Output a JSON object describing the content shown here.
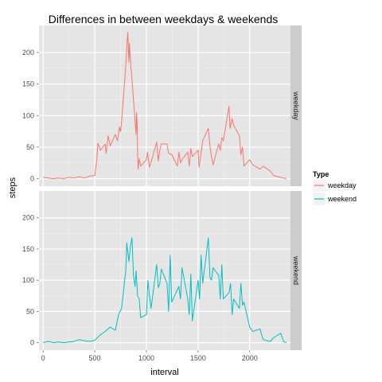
{
  "chart_data": {
    "type": "line",
    "title": "Differences in between weekdays & weekends",
    "xlabel": "interval",
    "ylabel": "steps",
    "xlim": [
      -40,
      2395
    ],
    "ylim": [
      -12,
      243
    ],
    "x_ticks": [
      0,
      500,
      1000,
      1500,
      2000
    ],
    "x_tick_labels": [
      "0",
      "500",
      "1000",
      "1500",
      "2000"
    ],
    "y_ticks": [
      0,
      50,
      100,
      150,
      200
    ],
    "y_tick_labels": [
      "0",
      "50",
      "100",
      "150",
      "200"
    ],
    "grid": true,
    "facet_by": "Type",
    "legend": {
      "title": "Type",
      "position": "right",
      "entries": [
        {
          "label": "weekday",
          "color": "#F8766D"
        },
        {
          "label": "weekend",
          "color": "#00BFC4"
        }
      ]
    },
    "panels": [
      {
        "strip_label": "weekday",
        "series": [
          {
            "name": "weekday",
            "color": "#F8766D",
            "x": [
              0,
              50,
              100,
              150,
              200,
              250,
              300,
              350,
              400,
              450,
              500,
              520,
              530,
              545,
              555,
              600,
              610,
              630,
              650,
              700,
              720,
              740,
              750,
              760,
              800,
              810,
              820,
              830,
              835,
              840,
              845,
              850,
              855,
              900,
              905,
              910,
              915,
              920,
              930,
              945,
              1000,
              1010,
              1030,
              1045,
              1100,
              1115,
              1130,
              1145,
              1200,
              1215,
              1245,
              1300,
              1315,
              1330,
              1345,
              1400,
              1415,
              1430,
              1445,
              1500,
              1510,
              1530,
              1545,
              1600,
              1615,
              1630,
              1645,
              1700,
              1715,
              1730,
              1745,
              1800,
              1810,
              1830,
              1845,
              1900,
              1915,
              1930,
              1945,
              2000,
              2030,
              2100,
              2130,
              2200,
              2230,
              2300,
              2355
            ],
            "y": [
              2,
              1,
              0,
              1,
              0,
              2,
              1,
              3,
              1,
              4,
              5,
              30,
              56,
              50,
              45,
              55,
              40,
              68,
              52,
              70,
              60,
              82,
              75,
              90,
              178,
              210,
              232,
              185,
              215,
              200,
              190,
              175,
              170,
              70,
              105,
              90,
              40,
              15,
              32,
              20,
              30,
              42,
              18,
              26,
              58,
              28,
              45,
              55,
              55,
              40,
              38,
              20,
              42,
              25,
              30,
              42,
              20,
              48,
              35,
              45,
              18,
              40,
              60,
              80,
              52,
              35,
              22,
              55,
              45,
              65,
              60,
              115,
              80,
              95,
              85,
              68,
              38,
              50,
              20,
              30,
              22,
              15,
              20,
              12,
              5,
              2,
              0
            ]
          }
        ]
      },
      {
        "strip_label": "weekend",
        "series": [
          {
            "name": "weekend",
            "color": "#00BFC4",
            "x": [
              0,
              50,
              100,
              150,
              200,
              250,
              300,
              350,
              400,
              450,
              500,
              550,
              600,
              650,
              700,
              730,
              760,
              800,
              810,
              820,
              830,
              845,
              860,
              875,
              890,
              900,
              915,
              930,
              945,
              1000,
              1015,
              1030,
              1045,
              1100,
              1115,
              1130,
              1145,
              1200,
              1215,
              1230,
              1245,
              1300,
              1315,
              1330,
              1345,
              1400,
              1415,
              1430,
              1445,
              1500,
              1515,
              1530,
              1545,
              1600,
              1615,
              1630,
              1645,
              1700,
              1715,
              1730,
              1745,
              1800,
              1815,
              1830,
              1845,
              1900,
              1915,
              1930,
              1945,
              2000,
              2030,
              2100,
              2130,
              2200,
              2230,
              2300,
              2330,
              2355
            ],
            "y": [
              0,
              2,
              0,
              1,
              0,
              1,
              2,
              5,
              3,
              2,
              4,
              12,
              18,
              25,
              20,
              45,
              55,
              115,
              160,
              145,
              130,
              155,
              168,
              108,
              90,
              115,
              75,
              70,
              40,
              45,
              100,
              75,
              55,
              125,
              88,
              95,
              118,
              95,
              50,
              140,
              65,
              85,
              90,
              70,
              120,
              70,
              45,
              110,
              35,
              100,
              70,
              140,
              95,
              168,
              105,
              100,
              120,
              108,
              70,
              125,
              70,
              80,
              95,
              45,
              70,
              55,
              95,
              60,
              65,
              25,
              18,
              22,
              5,
              2,
              8,
              15,
              2,
              0
            ]
          }
        ]
      }
    ]
  }
}
